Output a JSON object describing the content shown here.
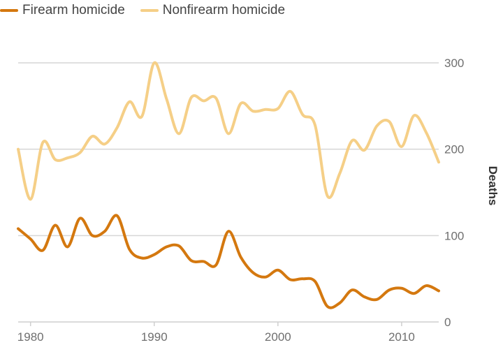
{
  "chart_data": {
    "type": "line",
    "title": "",
    "xlabel": "",
    "ylabel": "Deaths",
    "xlim": [
      1979,
      2013
    ],
    "ylim": [
      0,
      300
    ],
    "x_ticks": [
      1980,
      1990,
      2000,
      2010
    ],
    "y_ticks": [
      0,
      100,
      200,
      300
    ],
    "grid": "horizontal",
    "legend_position": "top-left",
    "x": [
      1979,
      1980,
      1981,
      1982,
      1983,
      1984,
      1985,
      1986,
      1987,
      1988,
      1989,
      1990,
      1991,
      1992,
      1993,
      1994,
      1995,
      1996,
      1997,
      1998,
      1999,
      2000,
      2001,
      2002,
      2003,
      2004,
      2005,
      2006,
      2007,
      2008,
      2009,
      2010,
      2011,
      2012,
      2013
    ],
    "series": [
      {
        "name": "Firearm homicide",
        "color": "#d4780f",
        "values": [
          108,
          96,
          83,
          112,
          87,
          120,
          100,
          105,
          123,
          84,
          74,
          78,
          87,
          88,
          71,
          70,
          66,
          105,
          75,
          57,
          52,
          60,
          49,
          50,
          47,
          18,
          22,
          37,
          29,
          26,
          37,
          39,
          33,
          42,
          36
        ]
      },
      {
        "name": "Nonfirearm homicide",
        "color": "#f5cf87",
        "values": [
          200,
          142,
          208,
          188,
          190,
          196,
          215,
          206,
          225,
          255,
          238,
          300,
          258,
          218,
          260,
          256,
          259,
          218,
          253,
          244,
          246,
          247,
          267,
          240,
          228,
          146,
          172,
          210,
          199,
          227,
          232,
          203,
          239,
          219,
          185
        ]
      }
    ]
  }
}
